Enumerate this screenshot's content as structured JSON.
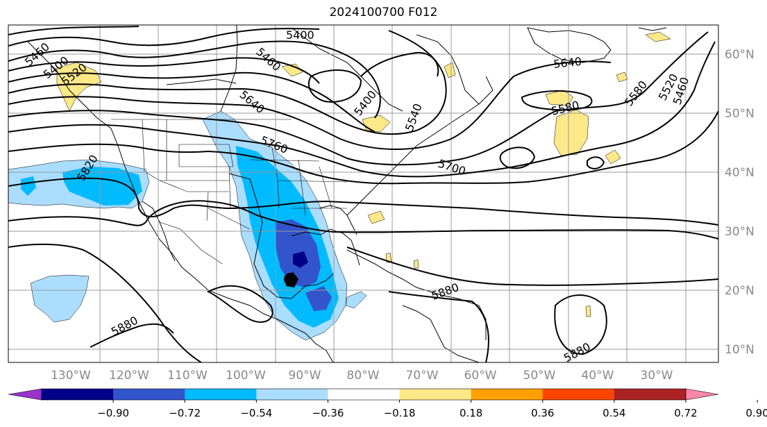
{
  "title": "2024100700 F012",
  "map": {
    "lon_labels": [
      "130°W",
      "120°W",
      "110°W",
      "100°W",
      "90°W",
      "80°W",
      "70°W",
      "60°W",
      "50°W",
      "40°W",
      "30°W"
    ],
    "lat_labels": [
      "60°N",
      "50°N",
      "40°N",
      "30°N",
      "20°N",
      "10°N"
    ],
    "contour_labels": [
      "5400",
      "5460",
      "5640",
      "5460",
      "5400",
      "5580",
      "5640",
      "5580",
      "5520",
      "5460",
      "5760",
      "5820",
      "5700",
      "5880",
      "5880",
      "5880",
      "5540",
      "5400",
      "5520"
    ]
  },
  "colorbar": {
    "ticks": [
      "−0.90",
      "−0.72",
      "−0.54",
      "−0.36",
      "−0.18",
      "0.18",
      "0.36",
      "0.54",
      "0.72",
      "0.90"
    ],
    "colors": [
      "#9933cc",
      "#000088",
      "#3355cc",
      "#00bbff",
      "#aaddff",
      "#ffffff",
      "#ffe888",
      "#ffa000",
      "#ff4400",
      "#aa2222",
      "#ff88aa"
    ]
  },
  "colors": {
    "contour": "#000000",
    "grid": "#999999",
    "axis_label": "#888888"
  }
}
